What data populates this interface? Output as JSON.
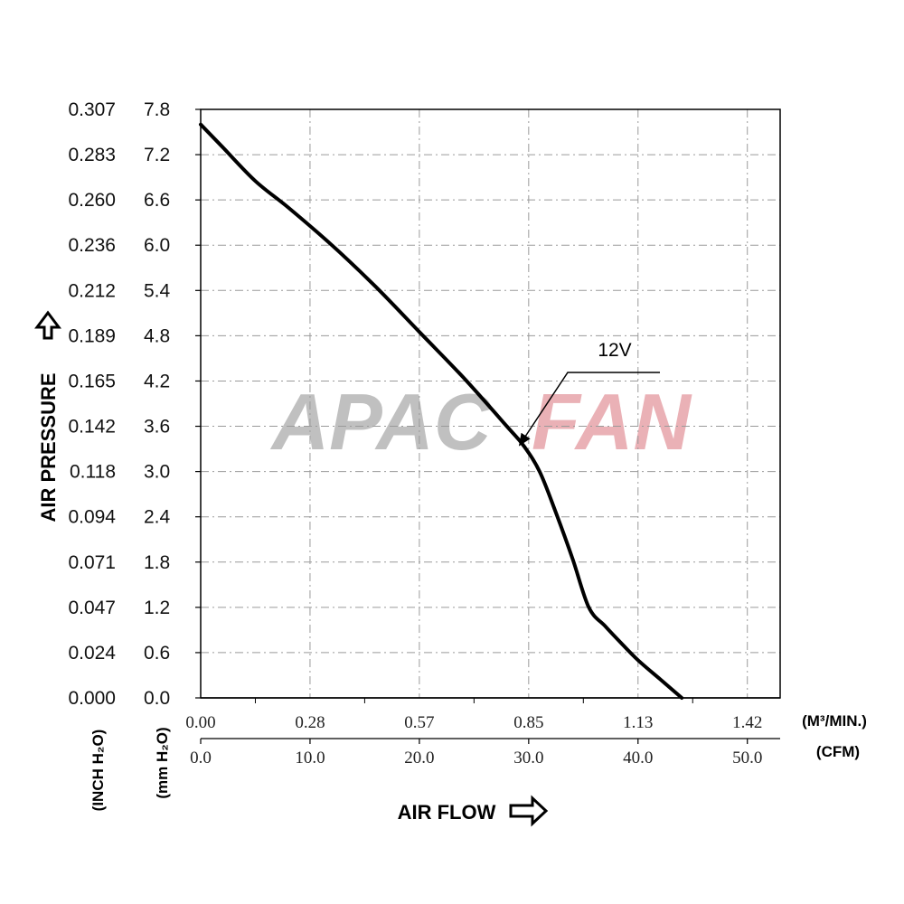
{
  "watermark": {
    "part1": "APAC",
    "part2": "FAN",
    "color1": "#8e8e8e",
    "color2": "#d9727c"
  },
  "chart_data": {
    "type": "line",
    "xlabel": "AIR FLOW",
    "ylabel": "AIR PRESSURE",
    "x_unit_primary": "(CFM)",
    "x_unit_secondary": "(M³/MIN.)",
    "y_unit_primary": "(mm H₂O)",
    "y_unit_secondary": "(INCH H₂O)",
    "xlim": [
      0,
      53
    ],
    "ylim": [
      0,
      7.8
    ],
    "x_ticks_cfm": [
      "0.0",
      "10.0",
      "20.0",
      "30.0",
      "40.0",
      "50.0"
    ],
    "x_ticks_m3": [
      "0.00",
      "0.28",
      "0.57",
      "0.85",
      "1.13",
      "1.42"
    ],
    "y_ticks_mm": [
      "0.0",
      "0.6",
      "1.2",
      "1.8",
      "2.4",
      "3.0",
      "3.6",
      "4.2",
      "4.8",
      "5.4",
      "6.0",
      "6.6",
      "7.2",
      "7.8"
    ],
    "y_ticks_inch": [
      "0.000",
      "0.024",
      "0.047",
      "0.071",
      "0.094",
      "0.118",
      "0.142",
      "0.165",
      "0.189",
      "0.212",
      "0.236",
      "0.260",
      "0.283",
      "0.307"
    ],
    "grid": true,
    "series": [
      {
        "name": "12V",
        "x": [
          0.0,
          2.0,
          5.0,
          8.0,
          12.0,
          16.0,
          20.0,
          24.0,
          28.0,
          29.5,
          31.0,
          32.5,
          34.0,
          35.5,
          37.0,
          38.5,
          40.0,
          42.0,
          44.0
        ],
        "y": [
          7.6,
          7.3,
          6.85,
          6.5,
          6.0,
          5.45,
          4.85,
          4.25,
          3.6,
          3.35,
          3.0,
          2.45,
          1.85,
          1.2,
          0.95,
          0.72,
          0.5,
          0.25,
          0.0
        ]
      }
    ],
    "annotations": [
      {
        "text": "12V",
        "target_x": 29.2,
        "target_y": 3.42
      }
    ]
  }
}
